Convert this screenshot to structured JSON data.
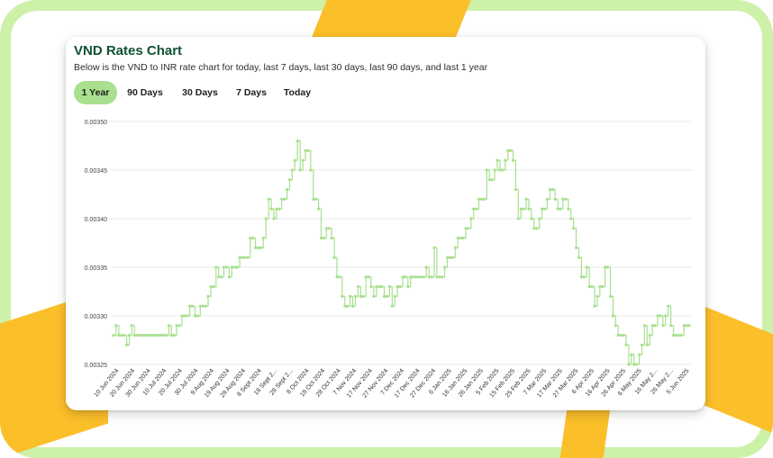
{
  "header": {
    "title": "VND Rates Chart",
    "subtitle": "Below is the VND to INR rate chart for today, last 7 days, last 30 days, last 90 days, and last 1 year"
  },
  "tabs": [
    {
      "label": "1 Year",
      "active": true
    },
    {
      "label": "90 Days",
      "active": false
    },
    {
      "label": "30 Days",
      "active": false
    },
    {
      "label": "7 Days",
      "active": false
    },
    {
      "label": "Today",
      "active": false
    }
  ],
  "colors": {
    "accent": "#a8e08f",
    "title": "#0e5232",
    "line": "#a8e08f",
    "decoration_yellow": "#fbbf2a",
    "frame_green": "#cdf1a8"
  },
  "chart_data": {
    "type": "line",
    "title": "",
    "xlabel": "",
    "ylabel": "",
    "ylim": [
      0.00325,
      0.0035
    ],
    "yticks": [
      "0.00350",
      "0.00345",
      "0.00340",
      "0.00335",
      "0.00330",
      "0.00325"
    ],
    "xticks": [
      "10 Jun 2024",
      "20 Jun 2024",
      "30 Jun 2024",
      "10 Jul 2024",
      "20 Jul 2024",
      "30 Jul 2024",
      "9 Aug 2024",
      "19 Aug 2024",
      "29 Aug 2024",
      "8 Sept 2024",
      "18 Sept 2...",
      "28 Sept 2...",
      "8 Oct 2024",
      "18 Oct 2024",
      "28 Oct 2024",
      "7 Nov 2024",
      "17 Nov 2024",
      "27 Nov 2024",
      "7 Dec 2024",
      "17 Dec 2024",
      "27 Dec 2024",
      "6 Jan 2025",
      "16 Jan 2025",
      "26 Jan 2025",
      "5 Feb 2025",
      "15 Feb 2025",
      "25 Feb 2025",
      "7 Mar 2025",
      "17 Mar 2025",
      "27 Mar 2025",
      "6 Apr 2025",
      "16 Apr 2025",
      "26 Apr 2025",
      "6 May 2025",
      "16 May 2...",
      "26 May 2...",
      "5 Jun 2025"
    ],
    "grid": true,
    "legend": "none",
    "series": [
      {
        "name": "",
        "values": [
          0.00328,
          0.00329,
          0.00328,
          0.00328,
          0.00328,
          0.00327,
          0.00328,
          0.00329,
          0.00328,
          0.00328,
          0.00328,
          0.00328,
          0.00328,
          0.00328,
          0.00328,
          0.00328,
          0.00328,
          0.00328,
          0.00328,
          0.00328,
          0.00328,
          0.00329,
          0.00328,
          0.00328,
          0.00329,
          0.00329,
          0.0033,
          0.0033,
          0.0033,
          0.00331,
          0.00331,
          0.0033,
          0.0033,
          0.00331,
          0.00331,
          0.00331,
          0.00332,
          0.00333,
          0.00333,
          0.00335,
          0.00334,
          0.00334,
          0.00335,
          0.00335,
          0.00334,
          0.00335,
          0.00335,
          0.00335,
          0.00336,
          0.00336,
          0.00336,
          0.00336,
          0.00338,
          0.00338,
          0.00337,
          0.00337,
          0.00337,
          0.00338,
          0.0034,
          0.00342,
          0.00341,
          0.0034,
          0.00341,
          0.00341,
          0.00342,
          0.00342,
          0.00343,
          0.00344,
          0.00345,
          0.00346,
          0.00348,
          0.00345,
          0.00346,
          0.00347,
          0.00347,
          0.00345,
          0.00342,
          0.00342,
          0.00341,
          0.00338,
          0.00338,
          0.00339,
          0.00339,
          0.00338,
          0.00336,
          0.00334,
          0.00334,
          0.00332,
          0.00331,
          0.00331,
          0.00332,
          0.00331,
          0.00332,
          0.00333,
          0.00332,
          0.00332,
          0.00334,
          0.00334,
          0.00333,
          0.00332,
          0.00333,
          0.00333,
          0.00333,
          0.00332,
          0.00332,
          0.00333,
          0.00331,
          0.00332,
          0.00333,
          0.00333,
          0.00334,
          0.00334,
          0.00333,
          0.00334,
          0.00334,
          0.00334,
          0.00334,
          0.00334,
          0.00334,
          0.00335,
          0.00334,
          0.00334,
          0.00337,
          0.00334,
          0.00334,
          0.00334,
          0.00335,
          0.00336,
          0.00336,
          0.00336,
          0.00337,
          0.00338,
          0.00338,
          0.00338,
          0.00339,
          0.00339,
          0.0034,
          0.00341,
          0.00341,
          0.00342,
          0.00342,
          0.00342,
          0.00345,
          0.00344,
          0.00344,
          0.00345,
          0.00346,
          0.00345,
          0.00345,
          0.00346,
          0.00347,
          0.00347,
          0.00346,
          0.00343,
          0.0034,
          0.00341,
          0.00341,
          0.00342,
          0.00341,
          0.0034,
          0.00339,
          0.00339,
          0.0034,
          0.00341,
          0.00341,
          0.00342,
          0.00343,
          0.00343,
          0.00342,
          0.00341,
          0.00341,
          0.00342,
          0.00342,
          0.00341,
          0.0034,
          0.00339,
          0.00337,
          0.00336,
          0.00334,
          0.00334,
          0.00335,
          0.00333,
          0.00333,
          0.00331,
          0.00332,
          0.00333,
          0.00333,
          0.00335,
          0.00335,
          0.00332,
          0.0033,
          0.00329,
          0.00328,
          0.00328,
          0.00328,
          0.00327,
          0.00325,
          0.00326,
          0.00325,
          0.00325,
          0.00326,
          0.00327,
          0.00329,
          0.00327,
          0.00328,
          0.00329,
          0.00329,
          0.0033,
          0.0033,
          0.00329,
          0.0033,
          0.00331,
          0.00329,
          0.00328,
          0.00328,
          0.00328,
          0.00328,
          0.00329,
          0.00329,
          0.00329
        ]
      }
    ]
  }
}
